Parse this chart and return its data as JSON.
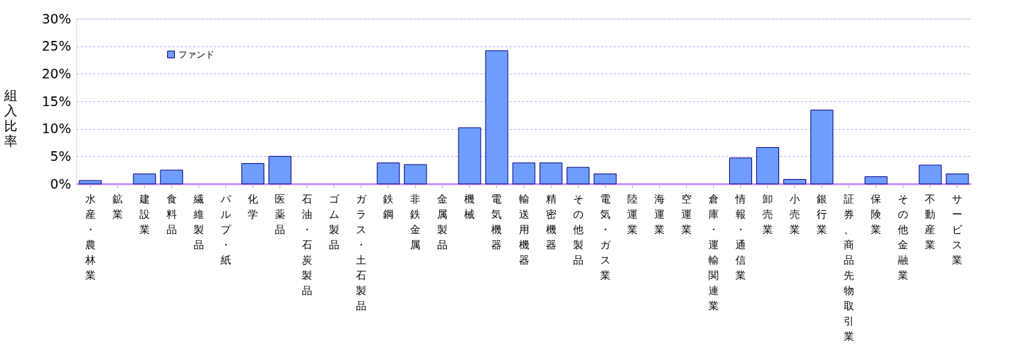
{
  "chart_data": {
    "type": "bar",
    "ylabel": "組入比率",
    "categories": [
      "水産・農林業",
      "鉱業",
      "建設業",
      "食料品",
      "繊維製品",
      "パルプ・紙",
      "化学",
      "医薬品",
      "石油・石炭製品",
      "ゴム製品",
      "ガラス・土石製品",
      "鉄鋼",
      "非鉄金属",
      "金属製品",
      "機械",
      "電気機器",
      "輸送用機器",
      "精密機器",
      "その他製品",
      "電気・ガス業",
      "陸運業",
      "海運業",
      "空運業",
      "倉庫・運輸関連業",
      "情報・通信業",
      "卸売業",
      "小売業",
      "銀行業",
      "証券、商品先物取引業",
      "保険業",
      "その他金融業",
      "不動産業",
      "サービス業"
    ],
    "series": [
      {
        "name": "ファンド",
        "color": "#6f9dff",
        "values": [
          0.6,
          0,
          1.8,
          2.5,
          0,
          0,
          3.7,
          5.0,
          0,
          0,
          0,
          3.8,
          3.5,
          0,
          10.2,
          24.2,
          3.8,
          3.8,
          3.0,
          1.8,
          0,
          0,
          0,
          0,
          4.7,
          6.6,
          0.8,
          13.4,
          0,
          1.3,
          0,
          3.4,
          1.8
        ]
      }
    ],
    "ylim": [
      0,
      30
    ],
    "yticks": [
      {
        "value": 0,
        "label": "0%"
      },
      {
        "value": 5,
        "label": "5%"
      },
      {
        "value": 10,
        "label": "10%"
      },
      {
        "value": 15,
        "label": "15%"
      },
      {
        "value": 20,
        "label": "20%"
      },
      {
        "value": 25,
        "label": "25%"
      },
      {
        "value": 30,
        "label": "30%"
      }
    ],
    "grid": "y",
    "legend": "top left"
  }
}
